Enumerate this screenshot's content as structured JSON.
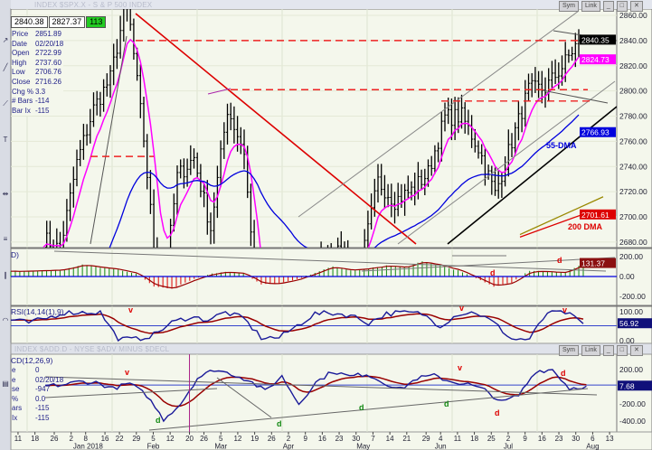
{
  "top_window": {
    "title": "INDEX $SPX.X - S & P 500 INDEX",
    "header_values": [
      "2840.38",
      "2827.37",
      "113"
    ],
    "info": [
      {
        "label": "Price",
        "value": "2851.89"
      },
      {
        "label": "Date",
        "value": "02/20/18"
      },
      {
        "label": "Open",
        "value": "2722.99"
      },
      {
        "label": "High",
        "value": "2737.60"
      },
      {
        "label": "Low",
        "value": "2706.76"
      },
      {
        "label": "Close",
        "value": "2716.26"
      },
      {
        "label": "Chg %",
        "value": "3.3"
      },
      {
        "label": "# Bars",
        "value": "-114"
      },
      {
        "label": "Bar Ix",
        "value": "-115"
      }
    ],
    "buttons": [
      "Sym",
      "Link"
    ]
  },
  "bottom_window": {
    "title": "INDEX $ADD.D - NYSE $ADV MINUS $DECL",
    "info": [
      {
        "label": "e",
        "value": "0"
      },
      {
        "label": "e",
        "value": "02/20/18"
      },
      {
        "label": "se",
        "value": "-947"
      },
      {
        "label": "%",
        "value": "0.0"
      },
      {
        "label": "ars",
        "value": "-115"
      },
      {
        "label": "Ix",
        "value": "-115"
      }
    ],
    "buttons": [
      "Sym",
      "Link"
    ]
  },
  "colors": {
    "price_bars": "#000000",
    "short_ma": "#ff00ff",
    "dma55": "#0000dd",
    "dma200": "#dd0000",
    "hist_up": "#118811",
    "hist_down": "#dd0000",
    "signal": "#990000",
    "osc": "#1a1a99",
    "background": "#f4f7ec"
  },
  "chart_data": [
    {
      "type": "bar",
      "subtype": "ohlc",
      "title": "INDEX $SPX.X - S & P 500 INDEX",
      "ylim": [
        2672,
        2868
      ],
      "yticks": [
        "2860.00",
        "2840.00",
        "2820.00",
        "2800.00",
        "2780.00",
        "2760.00",
        "2740.00",
        "2720.00",
        "2700.00",
        "2680.00"
      ],
      "grid": true,
      "x_weeks": [
        "2017-12-22",
        "2017-12-29",
        "2018-01-05",
        "2018-01-12",
        "2018-01-19",
        "2018-01-26",
        "2018-02-02",
        "2018-02-09",
        "2018-02-16",
        "2018-02-23",
        "2018-03-02",
        "2018-03-09",
        "2018-03-16",
        "2018-03-23",
        "2018-03-29",
        "2018-04-06",
        "2018-04-13",
        "2018-04-20",
        "2018-04-27",
        "2018-05-04",
        "2018-05-11",
        "2018-05-18",
        "2018-05-25",
        "2018-06-01",
        "2018-06-08",
        "2018-06-15",
        "2018-06-22",
        "2018-06-29",
        "2018-07-06",
        "2018-07-13",
        "2018-07-20",
        "2018-07-27",
        "2018-07-31"
      ],
      "closes": [
        2683,
        2674,
        2743,
        2786,
        2810,
        2873,
        2762,
        2620,
        2732,
        2747,
        2691,
        2786,
        2752,
        2588,
        2641,
        2604,
        2656,
        2670,
        2670,
        2663,
        2728,
        2713,
        2721,
        2735,
        2779,
        2780,
        2755,
        2718,
        2760,
        2801,
        2802,
        2819,
        2840
      ],
      "last_value_labels": [
        {
          "value": "2840.35",
          "color": "#000000"
        },
        {
          "value": "2824.73",
          "color": "#ff00ff"
        },
        {
          "value": "2766.93",
          "color": "#0000dd"
        },
        {
          "value": "2701.61",
          "color": "#dd0000"
        }
      ],
      "horizontal_levels": [
        2840,
        2801,
        2792,
        2808
      ],
      "annotations": [
        "55-DMA",
        "200 DMA"
      ]
    },
    {
      "type": "bar",
      "title": "D)",
      "ylim": [
        -280,
        280
      ],
      "yticks": [
        "200.00",
        "0.00",
        "-200.00"
      ],
      "values": [
        50,
        55,
        60,
        70,
        120,
        90,
        70,
        30,
        -100,
        -120,
        -40,
        20,
        50,
        30,
        -80,
        -70,
        -30,
        40,
        100,
        60,
        80,
        110,
        90,
        150,
        110,
        60,
        -20,
        -100,
        -60,
        60,
        50,
        40,
        131.37
      ],
      "last_value_label": "131.37",
      "annotations": [
        "d",
        "d"
      ]
    },
    {
      "type": "line",
      "title": "RSI(14,14(1),9)",
      "ylim": [
        0,
        100
      ],
      "yticks": [
        "100.00",
        "0.00"
      ],
      "values": [
        70,
        60,
        75,
        95,
        95,
        95,
        5,
        5,
        20,
        60,
        80,
        70,
        95,
        75,
        10,
        10,
        50,
        90,
        92,
        85,
        60,
        90,
        95,
        90,
        50,
        90,
        95,
        60,
        5,
        5,
        95,
        95,
        56.92
      ],
      "last_value_label": "56.92",
      "annotations": [
        "v",
        "v",
        "v"
      ]
    },
    {
      "type": "line",
      "title": "CD(12,26,9)",
      "ylim": [
        -470,
        290
      ],
      "yticks": [
        "200.00",
        "-200.00",
        "-400.00"
      ],
      "values": [
        10,
        20,
        60,
        50,
        -20,
        40,
        -100,
        -380,
        -200,
        100,
        200,
        150,
        80,
        -50,
        120,
        -200,
        50,
        180,
        120,
        150,
        50,
        -30,
        100,
        130,
        60,
        30,
        -40,
        -180,
        -100,
        180,
        200,
        -20,
        7.68
      ],
      "last_value_label": "7.68",
      "annotations": [
        "v",
        "v",
        "d",
        "d",
        "d",
        "d",
        "d",
        "d"
      ],
      "xticks": [
        {
          "label": "11",
          "date": "2017-12-11"
        },
        {
          "label": "18",
          "date": "2017-12-18"
        },
        {
          "label": "26",
          "date": "2017-12-26"
        },
        {
          "label": "2",
          "date": "2018-01-02"
        },
        {
          "label": "8",
          "date": "2018-01-08"
        },
        {
          "label": "16",
          "date": "2018-01-16"
        },
        {
          "label": "22",
          "date": "2018-01-22"
        },
        {
          "label": "29",
          "date": "2018-01-29"
        },
        {
          "label": "5",
          "date": "2018-02-05"
        },
        {
          "label": "12",
          "date": "2018-02-12"
        },
        {
          "label": "20",
          "date": "2018-02-20"
        },
        {
          "label": "26",
          "date": "2018-02-26"
        },
        {
          "label": "5",
          "date": "2018-03-05"
        },
        {
          "label": "12",
          "date": "2018-03-12"
        },
        {
          "label": "19",
          "date": "2018-03-19"
        },
        {
          "label": "26",
          "date": "2018-03-26"
        },
        {
          "label": "2",
          "date": "2018-04-02"
        },
        {
          "label": "9",
          "date": "2018-04-09"
        },
        {
          "label": "16",
          "date": "2018-04-16"
        },
        {
          "label": "23",
          "date": "2018-04-23"
        },
        {
          "label": "30",
          "date": "2018-04-30"
        },
        {
          "label": "7",
          "date": "2018-05-07"
        },
        {
          "label": "14",
          "date": "2018-05-14"
        },
        {
          "label": "21",
          "date": "2018-05-21"
        },
        {
          "label": "29",
          "date": "2018-05-29"
        },
        {
          "label": "4",
          "date": "2018-06-04"
        },
        {
          "label": "11",
          "date": "2018-06-11"
        },
        {
          "label": "18",
          "date": "2018-06-18"
        },
        {
          "label": "25",
          "date": "2018-06-25"
        },
        {
          "label": "2",
          "date": "2018-07-02"
        },
        {
          "label": "9",
          "date": "2018-07-09"
        },
        {
          "label": "16",
          "date": "2018-07-16"
        },
        {
          "label": "23",
          "date": "2018-07-23"
        },
        {
          "label": "30",
          "date": "2018-07-30"
        },
        {
          "label": "6",
          "date": "2018-08-06"
        },
        {
          "label": "13",
          "date": "2018-08-13"
        }
      ],
      "month_labels": [
        {
          "label": "Jan 2018",
          "date": "2018-01-09"
        },
        {
          "label": "Feb",
          "date": "2018-02-05"
        },
        {
          "label": "Mar",
          "date": "2018-03-05"
        },
        {
          "label": "Apr",
          "date": "2018-04-02"
        },
        {
          "label": "May",
          "date": "2018-05-03"
        },
        {
          "label": "Jun",
          "date": "2018-06-04"
        },
        {
          "label": "Jul",
          "date": "2018-07-02"
        },
        {
          "label": "Aug",
          "date": "2018-08-06"
        }
      ]
    }
  ]
}
